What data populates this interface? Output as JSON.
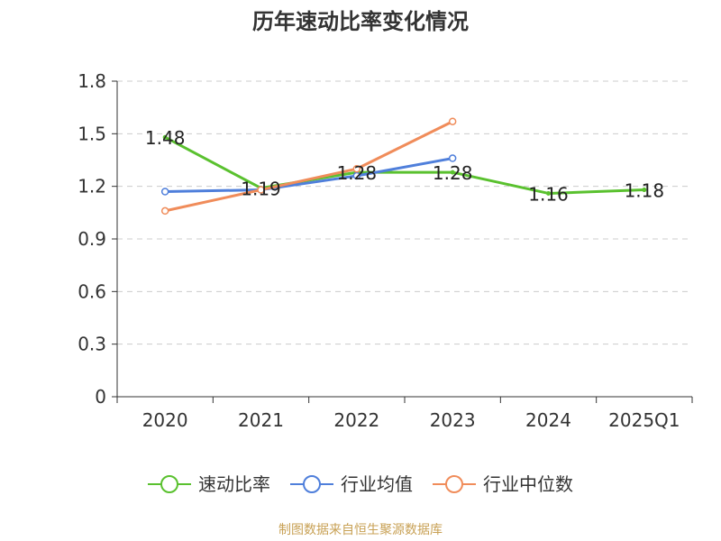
{
  "chart_data": {
    "type": "line",
    "title": "历年速动比率变化情况",
    "categories": [
      "2020",
      "2021",
      "2022",
      "2023",
      "2024",
      "2025Q1"
    ],
    "ylim": [
      0,
      1.8
    ],
    "yticks": [
      "0",
      "0.3",
      "0.6",
      "0.9",
      "1.2",
      "1.5",
      "1.8"
    ],
    "grid": true,
    "legend_position": "bottom",
    "series": [
      {
        "name": "速动比率",
        "color": "#5ac12f",
        "values": [
          1.48,
          1.19,
          1.28,
          1.28,
          1.16,
          1.18
        ],
        "labels": [
          "1.48",
          "1.19",
          "1.28",
          "1.28",
          "1.16",
          "1.18"
        ],
        "marker": "point"
      },
      {
        "name": "行业均值",
        "color": "#4f7fdb",
        "values": [
          1.17,
          1.18,
          1.26,
          1.36,
          null,
          null
        ],
        "marker": "circle"
      },
      {
        "name": "行业中位数",
        "color": "#f08c5a",
        "values": [
          1.06,
          1.18,
          1.3,
          1.57,
          null,
          null
        ],
        "marker": "circle"
      }
    ]
  },
  "source_note": "制图数据来自恒生聚源数据库"
}
